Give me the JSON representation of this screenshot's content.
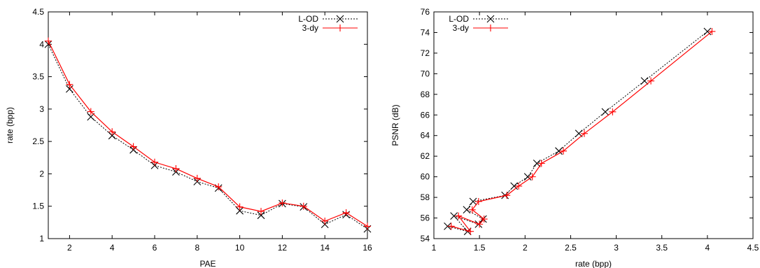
{
  "chart_data": [
    {
      "type": "line",
      "xlabel": "PAE",
      "ylabel": "rate (bpp)",
      "xlim": [
        1,
        16
      ],
      "ylim": [
        1,
        4.5
      ],
      "xticks": [
        2,
        4,
        6,
        8,
        10,
        12,
        14,
        16
      ],
      "yticks": [
        1,
        1.5,
        2,
        2.5,
        3,
        3.5,
        4,
        4.5
      ],
      "ytick_labels": [
        "1",
        "1.5",
        "2",
        "2.5",
        "3",
        "3.5",
        "4",
        "4.5"
      ],
      "legend_position": "top-right",
      "grid": false,
      "series": [
        {
          "name": "L-OD",
          "color": "#000000",
          "line": "dotted",
          "marker": "x",
          "x": [
            1,
            2,
            3,
            4,
            5,
            6,
            7,
            8,
            9,
            10,
            11,
            12,
            13,
            14,
            15,
            16
          ],
          "y": [
            4.0,
            3.31,
            2.88,
            2.59,
            2.37,
            2.13,
            2.03,
            1.88,
            1.78,
            1.43,
            1.36,
            1.54,
            1.49,
            1.22,
            1.37,
            1.15
          ]
        },
        {
          "name": "3-dy",
          "color": "#ff0000",
          "line": "solid",
          "marker": "+",
          "x": [
            1,
            2,
            3,
            4,
            5,
            6,
            7,
            8,
            9,
            10,
            11,
            12,
            13,
            14,
            15,
            16
          ],
          "y": [
            4.05,
            3.38,
            2.96,
            2.65,
            2.42,
            2.18,
            2.08,
            1.93,
            1.8,
            1.49,
            1.42,
            1.55,
            1.5,
            1.27,
            1.4,
            1.19
          ]
        }
      ]
    },
    {
      "type": "line",
      "xlabel": "rate (bpp)",
      "ylabel": "PSNR (dB)",
      "xlim": [
        1,
        4.5
      ],
      "ylim": [
        54,
        76
      ],
      "xticks": [
        1,
        1.5,
        2,
        2.5,
        3,
        3.5,
        4,
        4.5
      ],
      "xtick_labels": [
        "1",
        "1.5",
        "2",
        "2.5",
        "3",
        "3.5",
        "4",
        "4.5"
      ],
      "yticks": [
        54,
        56,
        58,
        60,
        62,
        64,
        66,
        68,
        70,
        72,
        74,
        76
      ],
      "legend_position": "top-left",
      "grid": false,
      "series": [
        {
          "name": "L-OD",
          "color": "#000000",
          "line": "dotted",
          "marker": "x",
          "x": [
            4.0,
            3.31,
            2.88,
            2.59,
            2.37,
            2.13,
            2.03,
            1.88,
            1.78,
            1.43,
            1.36,
            1.54,
            1.49,
            1.22,
            1.37,
            1.15
          ],
          "y": [
            74.1,
            69.3,
            66.3,
            64.2,
            62.5,
            61.3,
            60.0,
            59.1,
            58.2,
            57.6,
            56.8,
            55.9,
            55.4,
            56.2,
            54.7,
            55.2
          ]
        },
        {
          "name": "3-dy",
          "color": "#ff0000",
          "line": "solid",
          "marker": "+",
          "x": [
            4.05,
            3.38,
            2.96,
            2.65,
            2.42,
            2.18,
            2.08,
            1.93,
            1.8,
            1.49,
            1.42,
            1.55,
            1.5,
            1.27,
            1.4,
            1.19
          ],
          "y": [
            74.1,
            69.3,
            66.3,
            64.2,
            62.5,
            61.3,
            60.0,
            59.1,
            58.2,
            57.6,
            56.8,
            55.9,
            55.4,
            56.2,
            54.7,
            55.2
          ]
        }
      ]
    }
  ]
}
